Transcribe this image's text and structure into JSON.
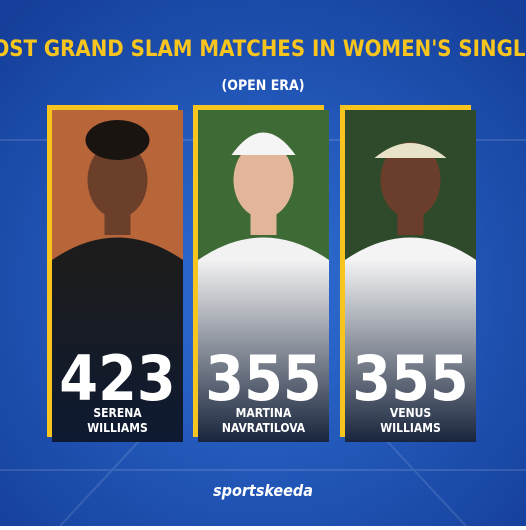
{
  "header": {
    "title": "MOST GRAND SLAM MATCHES IN WOMEN'S SINGLES",
    "subtitle": "(OPEN ERA)"
  },
  "players": [
    {
      "name": [
        "SERENA",
        "WILLIAMS"
      ],
      "matches": "423"
    },
    {
      "name": [
        "MARTINA",
        "NAVRATILOVA"
      ],
      "matches": "355"
    },
    {
      "name": [
        "VENUS",
        "WILLIAMS"
      ],
      "matches": "355"
    }
  ],
  "footer": {
    "brand": "sportskeeda"
  }
}
